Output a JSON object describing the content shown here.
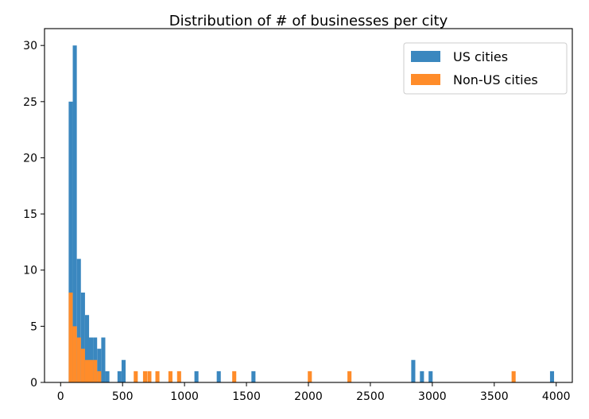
{
  "chart_data": {
    "type": "histogram",
    "title": "Distribution of # of businesses per city",
    "xlabel": "",
    "ylabel": "",
    "xlim": [
      -130,
      4130
    ],
    "ylim": [
      0,
      31.5
    ],
    "xticks": [
      0,
      500,
      1000,
      1500,
      2000,
      2500,
      3000,
      3500,
      4000
    ],
    "yticks": [
      0,
      5,
      10,
      15,
      20,
      25,
      30
    ],
    "bin_width": 32.7,
    "grid": false,
    "legend_position": "upper right",
    "series": [
      {
        "name": "US cities",
        "color": "#3a87bf",
        "bins": [
          {
            "x": 65,
            "count": 25
          },
          {
            "x": 98,
            "count": 30
          },
          {
            "x": 131,
            "count": 11
          },
          {
            "x": 164,
            "count": 8
          },
          {
            "x": 197,
            "count": 6
          },
          {
            "x": 229,
            "count": 4
          },
          {
            "x": 262,
            "count": 4
          },
          {
            "x": 295,
            "count": 3
          },
          {
            "x": 328,
            "count": 4
          },
          {
            "x": 361,
            "count": 1
          },
          {
            "x": 459,
            "count": 1
          },
          {
            "x": 492,
            "count": 2
          },
          {
            "x": 1080,
            "count": 1
          },
          {
            "x": 1260,
            "count": 1
          },
          {
            "x": 1540,
            "count": 1
          },
          {
            "x": 2830,
            "count": 2
          },
          {
            "x": 2900,
            "count": 1
          },
          {
            "x": 2970,
            "count": 1
          },
          {
            "x": 3950,
            "count": 1
          }
        ]
      },
      {
        "name": "Non-US cities",
        "color": "#ff8c2a",
        "bins": [
          {
            "x": 65,
            "count": 8
          },
          {
            "x": 98,
            "count": 5
          },
          {
            "x": 131,
            "count": 4
          },
          {
            "x": 164,
            "count": 3
          },
          {
            "x": 197,
            "count": 2
          },
          {
            "x": 229,
            "count": 2
          },
          {
            "x": 262,
            "count": 2
          },
          {
            "x": 295,
            "count": 1
          },
          {
            "x": 590,
            "count": 1
          },
          {
            "x": 665,
            "count": 1
          },
          {
            "x": 700,
            "count": 1
          },
          {
            "x": 765,
            "count": 1
          },
          {
            "x": 870,
            "count": 1
          },
          {
            "x": 940,
            "count": 1
          },
          {
            "x": 1385,
            "count": 1
          },
          {
            "x": 1995,
            "count": 1
          },
          {
            "x": 2315,
            "count": 1
          },
          {
            "x": 3640,
            "count": 1
          }
        ]
      }
    ]
  }
}
